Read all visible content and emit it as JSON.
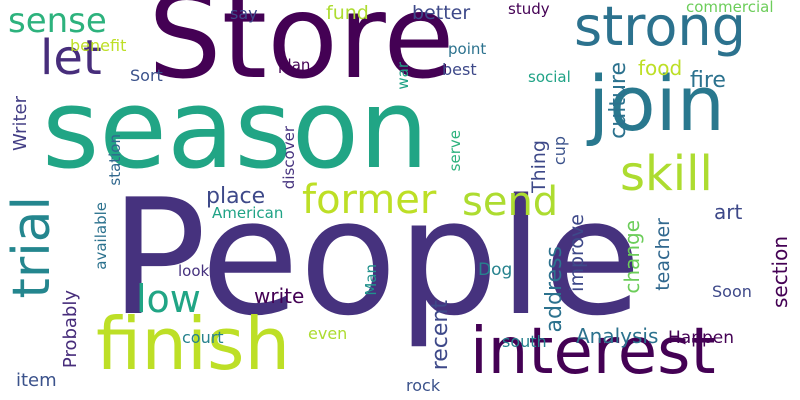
{
  "words": [
    {
      "text": "People",
      "color": "#46327e",
      "weight": 100
    },
    {
      "text": "season",
      "color": "#21a585",
      "weight": 70
    },
    {
      "text": "Store",
      "color": "#440154",
      "weight": 72
    },
    {
      "text": "join",
      "color": "#29788e",
      "weight": 48
    },
    {
      "text": "finish",
      "color": "#bddf26",
      "weight": 44
    },
    {
      "text": "interest",
      "color": "#440154",
      "weight": 40
    },
    {
      "text": "strong",
      "color": "#2c728e",
      "weight": 34
    },
    {
      "text": "trial",
      "color": "#24868e",
      "weight": 32
    },
    {
      "text": "skill",
      "color": "#addc30",
      "weight": 30
    },
    {
      "text": "let",
      "color": "#472d7b",
      "weight": 30
    },
    {
      "text": "former",
      "color": "#bddf26",
      "weight": 22
    },
    {
      "text": "send",
      "color": "#addc30",
      "weight": 22
    },
    {
      "text": "low",
      "color": "#21a585",
      "weight": 22
    },
    {
      "text": "sense",
      "color": "#2db27d",
      "weight": 20
    },
    {
      "text": "Writer",
      "color": "#433e85",
      "weight": 11
    },
    {
      "text": "Probably",
      "color": "#472d7b",
      "weight": 11
    },
    {
      "text": "item",
      "color": "#3b528b",
      "weight": 11
    },
    {
      "text": "benefit",
      "color": "#bddf26",
      "weight": 9
    },
    {
      "text": "Sort",
      "color": "#3b528b",
      "weight": 9
    },
    {
      "text": "station",
      "color": "#31688e",
      "weight": 8
    },
    {
      "text": "available",
      "color": "#2c728e",
      "weight": 8
    },
    {
      "text": "discover",
      "color": "#46337f",
      "weight": 8
    },
    {
      "text": "American",
      "color": "#20a386",
      "weight": 8
    },
    {
      "text": "look",
      "color": "#46327e",
      "weight": 8
    },
    {
      "text": "court",
      "color": "#26828e",
      "weight": 9
    },
    {
      "text": "even",
      "color": "#addc30",
      "weight": 9
    },
    {
      "text": "rock",
      "color": "#3b528b",
      "weight": 9
    },
    {
      "text": "say",
      "color": "#3e4989",
      "weight": 9
    },
    {
      "text": "plan",
      "color": "#440154",
      "weight": 8
    },
    {
      "text": "war",
      "color": "#20a386",
      "weight": 8
    },
    {
      "text": "fund",
      "color": "#addc30",
      "weight": 11
    },
    {
      "text": "better",
      "color": "#3e4989",
      "weight": 11
    },
    {
      "text": "point",
      "color": "#2c728e",
      "weight": 8
    },
    {
      "text": "best",
      "color": "#3e4989",
      "weight": 9
    },
    {
      "text": "study",
      "color": "#440154",
      "weight": 8
    },
    {
      "text": "commercial",
      "color": "#6ccd5a",
      "weight": 8
    },
    {
      "text": "social",
      "color": "#20a386",
      "weight": 8
    },
    {
      "text": "serve",
      "color": "#2db27d",
      "weight": 8
    },
    {
      "text": "cup",
      "color": "#3b528b",
      "weight": 9
    },
    {
      "text": "Thing",
      "color": "#3e4989",
      "weight": 11
    },
    {
      "text": "culture",
      "color": "#2c728e",
      "weight": 13
    },
    {
      "text": "food",
      "color": "#bddf26",
      "weight": 11
    },
    {
      "text": "fire",
      "color": "#2c728e",
      "weight": 13
    },
    {
      "text": "place",
      "color": "#3e4989",
      "weight": 13
    },
    {
      "text": "improve",
      "color": "#3e4989",
      "weight": 11
    },
    {
      "text": "address",
      "color": "#2c728e",
      "weight": 13
    },
    {
      "text": "recent",
      "color": "#3e4989",
      "weight": 13
    },
    {
      "text": "change",
      "color": "#6ccd5a",
      "weight": 11
    },
    {
      "text": "teacher",
      "color": "#31688e",
      "weight": 11
    },
    {
      "text": "art",
      "color": "#3e4989",
      "weight": 11
    },
    {
      "text": "section",
      "color": "#440154",
      "weight": 11
    },
    {
      "text": "write",
      "color": "#440154",
      "weight": 11
    },
    {
      "text": "Dog",
      "color": "#26828e",
      "weight": 9
    },
    {
      "text": "Man",
      "color": "#21918c",
      "weight": 8
    },
    {
      "text": "Soon",
      "color": "#3e4989",
      "weight": 9
    },
    {
      "text": "south",
      "color": "#26828e",
      "weight": 9
    },
    {
      "text": "Analysis",
      "color": "#2c728e",
      "weight": 11
    },
    {
      "text": "Happen",
      "color": "#440154",
      "weight": 9
    }
  ]
}
